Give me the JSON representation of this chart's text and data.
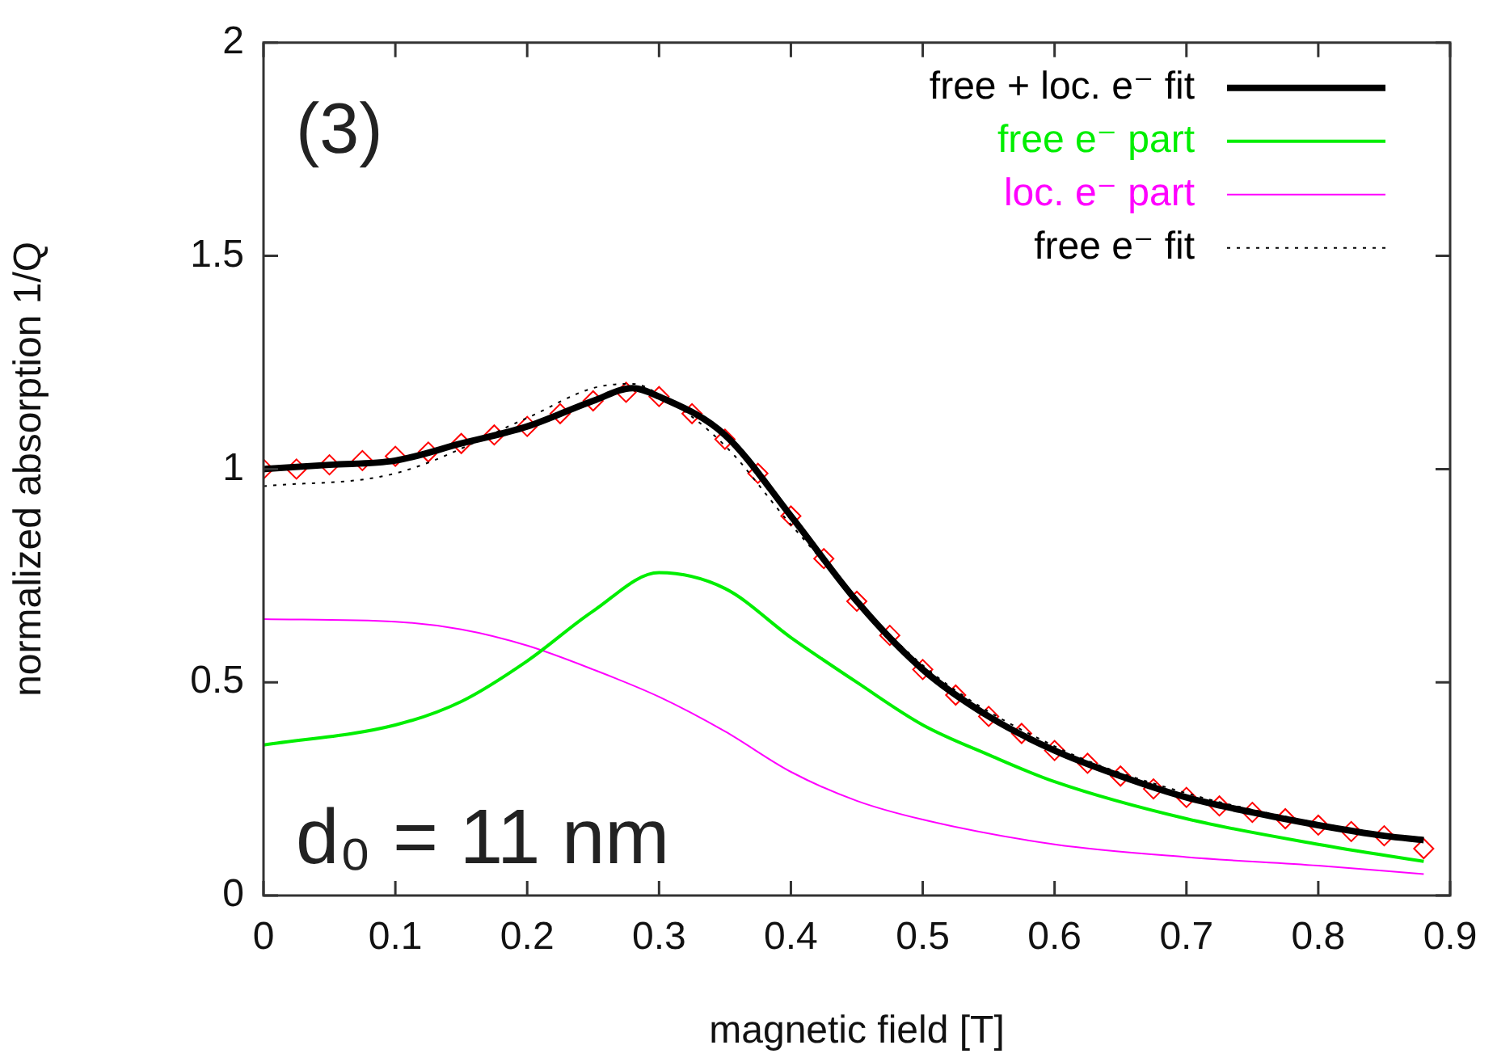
{
  "chart_data": {
    "type": "line",
    "xlabel": "magnetic field [T]",
    "ylabel": "normalized absorption 1/Q",
    "annotations": [
      "(3)",
      "d₀ = 11 nm"
    ],
    "xlim": [
      0,
      0.9
    ],
    "xticks": [
      0,
      0.1,
      0.2,
      0.3,
      0.4,
      0.5,
      0.6,
      0.7,
      0.8,
      0.9
    ],
    "ylim": [
      0,
      2
    ],
    "yticks": [
      0,
      0.5,
      1,
      1.5,
      2
    ],
    "grid": false,
    "legend": "top right",
    "series": [
      {
        "type": "scatter",
        "marker": "diamond",
        "color": "#ff0000",
        "x": [
          0,
          0.025,
          0.05,
          0.075,
          0.1,
          0.125,
          0.15,
          0.175,
          0.2,
          0.225,
          0.25,
          0.275,
          0.3,
          0.325,
          0.35,
          0.375,
          0.4,
          0.425,
          0.45,
          0.475,
          0.5,
          0.525,
          0.55,
          0.575,
          0.6,
          0.625,
          0.65,
          0.675,
          0.7,
          0.725,
          0.75,
          0.775,
          0.8,
          0.825,
          0.85,
          0.88
        ],
        "values": [
          1.0,
          1.0,
          1.01,
          1.02,
          1.03,
          1.04,
          1.06,
          1.08,
          1.1,
          1.13,
          1.16,
          1.18,
          1.17,
          1.13,
          1.07,
          0.99,
          0.89,
          0.79,
          0.69,
          0.61,
          0.53,
          0.47,
          0.42,
          0.38,
          0.34,
          0.31,
          0.28,
          0.25,
          0.23,
          0.21,
          0.195,
          0.18,
          0.165,
          0.15,
          0.14,
          0.11
        ]
      },
      {
        "name": "free + loc. e⁻ fit",
        "color": "#000000",
        "line_style": "solid",
        "x": [
          0,
          0.05,
          0.1,
          0.15,
          0.2,
          0.25,
          0.28,
          0.3,
          0.35,
          0.4,
          0.45,
          0.5,
          0.55,
          0.6,
          0.65,
          0.7,
          0.75,
          0.8,
          0.85,
          0.88
        ],
        "values": [
          1.0,
          1.01,
          1.02,
          1.06,
          1.1,
          1.16,
          1.19,
          1.17,
          1.08,
          0.89,
          0.69,
          0.53,
          0.42,
          0.34,
          0.28,
          0.23,
          0.195,
          0.165,
          0.14,
          0.13
        ]
      },
      {
        "name": "free e⁻ part",
        "color": "#00ee00",
        "line_style": "solid",
        "x": [
          0,
          0.1,
          0.15,
          0.2,
          0.25,
          0.3,
          0.35,
          0.4,
          0.45,
          0.5,
          0.55,
          0.6,
          0.7,
          0.8,
          0.88
        ],
        "values": [
          0.353,
          0.4,
          0.455,
          0.55,
          0.667,
          0.757,
          0.72,
          0.605,
          0.5,
          0.4,
          0.33,
          0.267,
          0.18,
          0.12,
          0.08
        ]
      },
      {
        "name": "loc. e⁻ part",
        "color": "#ff00ff",
        "line_style": "solid",
        "x": [
          0,
          0.1,
          0.15,
          0.2,
          0.25,
          0.3,
          0.35,
          0.4,
          0.45,
          0.5,
          0.6,
          0.7,
          0.8,
          0.88
        ],
        "values": [
          0.648,
          0.642,
          0.624,
          0.586,
          0.53,
          0.466,
          0.385,
          0.29,
          0.222,
          0.178,
          0.12,
          0.09,
          0.07,
          0.05
        ]
      },
      {
        "name": "free e⁻ fit",
        "color": "#000000",
        "line_style": "dotted",
        "x": [
          0,
          0.1,
          0.2,
          0.25,
          0.28,
          0.3,
          0.35,
          0.4,
          0.5,
          0.6,
          0.7,
          0.8,
          0.88
        ],
        "values": [
          0.96,
          0.99,
          1.12,
          1.19,
          1.2,
          1.175,
          1.055,
          0.87,
          0.54,
          0.35,
          0.24,
          0.17,
          0.13
        ]
      }
    ]
  }
}
